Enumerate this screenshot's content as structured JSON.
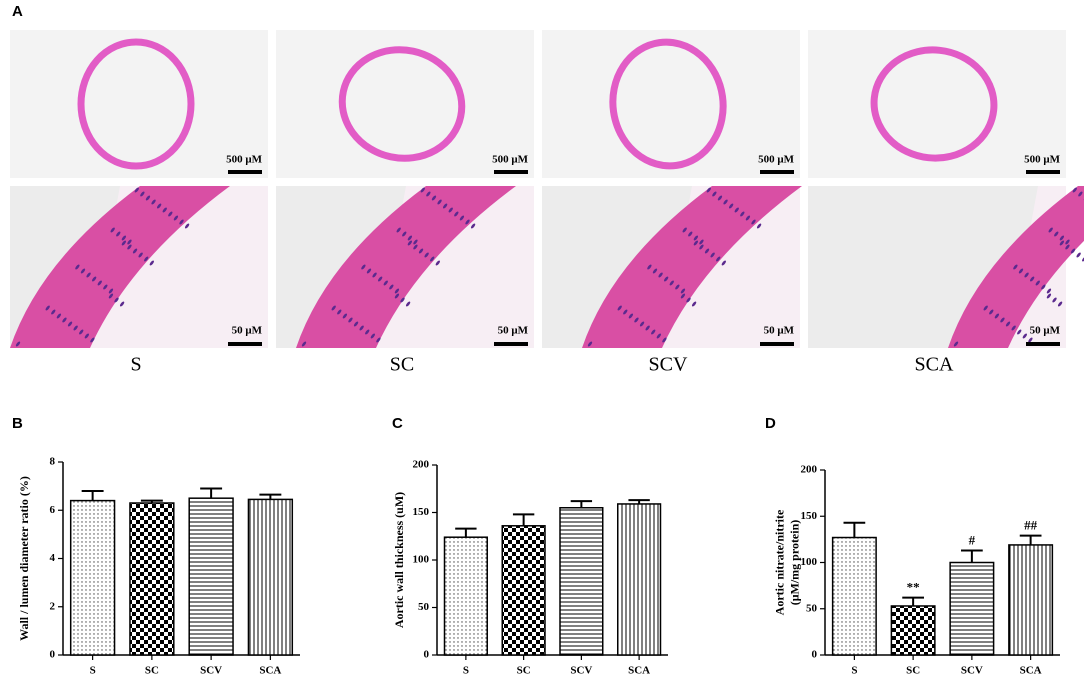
{
  "figure_a": {
    "label": "A",
    "groups": [
      "S",
      "SC",
      "SCV",
      "SCA"
    ],
    "scale_bar_top": "500 μM",
    "scale_bar_bottom": "50 μM"
  },
  "chart_data": [
    {
      "type": "bar",
      "panel": "B",
      "y_label": [
        "Wall / lumen diameter ratio (%)"
      ],
      "categories": [
        "S",
        "SC",
        "SCV",
        "SCA"
      ],
      "values": [
        6.4,
        6.3,
        6.5,
        6.45
      ],
      "errors": [
        0.4,
        0.1,
        0.4,
        0.2
      ],
      "patterns": [
        "dots",
        "checker",
        "hlines",
        "vlines"
      ],
      "color": "#000000",
      "ylim": [
        0,
        8
      ],
      "yticks": [
        0,
        2,
        4,
        6,
        8
      ]
    },
    {
      "type": "bar",
      "panel": "C",
      "y_label": [
        "Aortic wall thickness (uM)"
      ],
      "categories": [
        "S",
        "SC",
        "SCV",
        "SCA"
      ],
      "values": [
        124,
        136,
        155,
        159
      ],
      "errors": [
        9,
        12,
        7,
        4
      ],
      "patterns": [
        "dots",
        "checker",
        "hlines",
        "vlines"
      ],
      "color": "#000000",
      "ylim": [
        0,
        200
      ],
      "yticks": [
        0,
        50,
        100,
        150,
        200
      ]
    },
    {
      "type": "bar",
      "panel": "D",
      "y_label": [
        "Aortic nitrate/nitrite",
        "(μM/mg protein)"
      ],
      "categories": [
        "S",
        "SC",
        "SCV",
        "SCA"
      ],
      "values": [
        127,
        53,
        100,
        119
      ],
      "errors": [
        16,
        9,
        13,
        10
      ],
      "significance": [
        null,
        "**",
        "#",
        "##"
      ],
      "patterns": [
        "dots",
        "checker",
        "hlines",
        "vlines"
      ],
      "color": "#000000",
      "ylim": [
        0,
        200
      ],
      "yticks": [
        0,
        50,
        100,
        150,
        200
      ]
    }
  ]
}
